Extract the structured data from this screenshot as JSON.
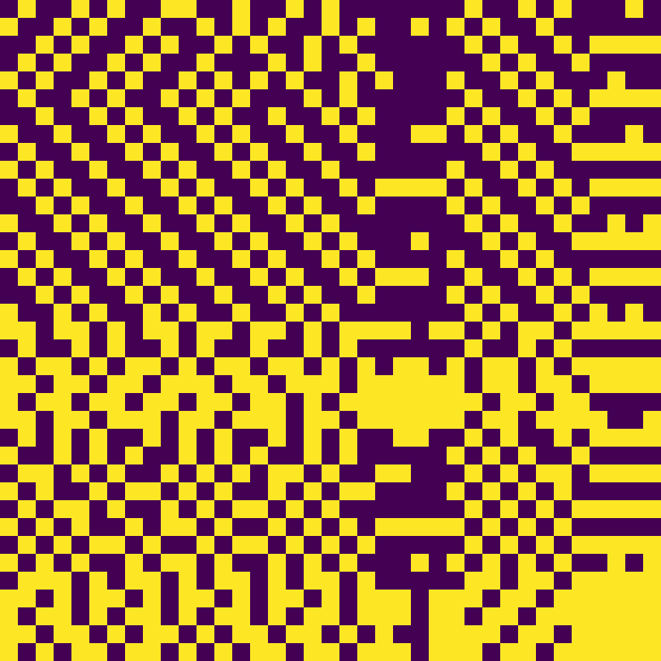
{
  "chart_data": {
    "type": "heatmap",
    "tick_labels": false,
    "colors": [
      "#440154",
      "#fde725"
    ],
    "cells": [
      [
        0,
        1,
        0,
        0,
        1,
        0,
        1,
        0,
        0,
        1,
        1,
        0,
        0,
        1,
        0,
        0,
        1,
        0,
        1,
        0,
        0,
        0,
        0,
        0,
        0,
        0,
        1,
        0,
        0,
        1,
        0,
        1,
        0,
        0,
        0,
        1,
        0
      ],
      [
        1,
        0,
        0,
        1,
        0,
        1,
        0,
        0,
        1,
        0,
        0,
        1,
        0,
        1,
        0,
        1,
        0,
        0,
        1,
        0,
        1,
        0,
        0,
        1,
        0,
        1,
        0,
        1,
        0,
        0,
        1,
        0,
        0,
        0,
        0,
        0,
        0
      ],
      [
        0,
        0,
        1,
        0,
        1,
        0,
        0,
        1,
        0,
        1,
        0,
        0,
        1,
        0,
        1,
        0,
        0,
        1,
        0,
        1,
        0,
        0,
        0,
        0,
        0,
        0,
        1,
        0,
        1,
        0,
        0,
        1,
        0,
        1,
        1,
        1,
        1
      ],
      [
        0,
        1,
        0,
        1,
        0,
        0,
        1,
        0,
        1,
        0,
        0,
        1,
        0,
        0,
        0,
        1,
        0,
        1,
        0,
        0,
        1,
        0,
        0,
        0,
        0,
        0,
        0,
        1,
        0,
        1,
        0,
        0,
        1,
        0,
        0,
        0,
        0
      ],
      [
        1,
        0,
        1,
        0,
        0,
        1,
        0,
        1,
        0,
        0,
        1,
        0,
        1,
        0,
        1,
        0,
        1,
        0,
        0,
        1,
        0,
        1,
        0,
        0,
        0,
        1,
        0,
        0,
        1,
        0,
        1,
        0,
        0,
        0,
        1,
        0,
        0
      ],
      [
        0,
        1,
        0,
        0,
        1,
        0,
        1,
        0,
        0,
        1,
        0,
        1,
        0,
        1,
        0,
        0,
        0,
        1,
        0,
        1,
        0,
        0,
        0,
        0,
        0,
        0,
        1,
        0,
        0,
        1,
        0,
        1,
        0,
        1,
        1,
        1,
        1
      ],
      [
        0,
        0,
        1,
        0,
        0,
        1,
        0,
        1,
        0,
        0,
        1,
        0,
        1,
        0,
        0,
        1,
        0,
        0,
        1,
        0,
        1,
        0,
        0,
        0,
        0,
        1,
        0,
        1,
        0,
        0,
        1,
        0,
        1,
        0,
        0,
        0,
        0
      ],
      [
        1,
        0,
        0,
        1,
        0,
        0,
        1,
        0,
        1,
        0,
        0,
        1,
        0,
        1,
        0,
        0,
        1,
        0,
        0,
        1,
        0,
        0,
        0,
        1,
        1,
        0,
        1,
        0,
        1,
        0,
        0,
        1,
        0,
        0,
        0,
        1,
        0
      ],
      [
        0,
        1,
        0,
        0,
        1,
        0,
        0,
        1,
        0,
        1,
        0,
        0,
        1,
        0,
        1,
        0,
        0,
        1,
        0,
        0,
        1,
        0,
        0,
        0,
        0,
        0,
        0,
        1,
        0,
        1,
        0,
        0,
        1,
        1,
        1,
        1,
        1
      ],
      [
        1,
        0,
        1,
        0,
        0,
        1,
        0,
        0,
        1,
        0,
        1,
        0,
        0,
        1,
        0,
        1,
        0,
        0,
        1,
        0,
        0,
        0,
        0,
        0,
        0,
        1,
        0,
        0,
        1,
        0,
        1,
        0,
        0,
        0,
        0,
        0,
        0
      ],
      [
        0,
        1,
        0,
        1,
        0,
        0,
        1,
        0,
        0,
        1,
        0,
        1,
        0,
        0,
        1,
        0,
        1,
        0,
        0,
        1,
        0,
        1,
        1,
        1,
        1,
        0,
        1,
        0,
        0,
        1,
        0,
        1,
        0,
        1,
        1,
        1,
        1
      ],
      [
        0,
        0,
        1,
        0,
        1,
        0,
        0,
        1,
        0,
        0,
        1,
        0,
        1,
        0,
        0,
        1,
        0,
        1,
        0,
        0,
        1,
        0,
        0,
        0,
        0,
        1,
        0,
        1,
        0,
        0,
        1,
        0,
        1,
        0,
        0,
        0,
        0
      ],
      [
        1,
        0,
        0,
        1,
        0,
        1,
        0,
        0,
        1,
        0,
        0,
        1,
        0,
        1,
        0,
        0,
        1,
        0,
        1,
        0,
        0,
        0,
        0,
        0,
        0,
        0,
        1,
        0,
        1,
        0,
        0,
        1,
        0,
        0,
        1,
        0,
        1
      ],
      [
        0,
        1,
        0,
        0,
        1,
        0,
        1,
        0,
        0,
        1,
        0,
        0,
        1,
        0,
        1,
        0,
        0,
        1,
        0,
        1,
        0,
        0,
        0,
        1,
        0,
        0,
        0,
        1,
        0,
        1,
        0,
        0,
        1,
        1,
        1,
        1,
        1
      ],
      [
        1,
        0,
        1,
        0,
        0,
        1,
        0,
        1,
        0,
        0,
        1,
        0,
        0,
        1,
        0,
        1,
        0,
        0,
        1,
        0,
        1,
        0,
        0,
        0,
        0,
        1,
        0,
        0,
        1,
        0,
        1,
        0,
        0,
        0,
        0,
        0,
        0
      ],
      [
        0,
        1,
        0,
        1,
        0,
        0,
        1,
        0,
        1,
        0,
        0,
        1,
        0,
        0,
        1,
        0,
        1,
        0,
        0,
        1,
        0,
        1,
        1,
        1,
        0,
        0,
        1,
        0,
        0,
        1,
        0,
        1,
        0,
        1,
        1,
        1,
        1
      ],
      [
        0,
        0,
        1,
        0,
        1,
        0,
        0,
        1,
        0,
        1,
        0,
        0,
        1,
        0,
        0,
        1,
        0,
        1,
        0,
        0,
        1,
        0,
        0,
        0,
        0,
        1,
        0,
        1,
        0,
        0,
        1,
        0,
        1,
        0,
        0,
        0,
        0
      ],
      [
        1,
        0,
        0,
        1,
        0,
        1,
        0,
        0,
        1,
        0,
        1,
        0,
        0,
        1,
        0,
        0,
        1,
        0,
        1,
        0,
        0,
        0,
        0,
        0,
        0,
        0,
        1,
        0,
        1,
        0,
        0,
        1,
        0,
        1,
        0,
        1,
        0
      ],
      [
        1,
        1,
        0,
        1,
        1,
        0,
        1,
        0,
        1,
        1,
        0,
        1,
        1,
        0,
        1,
        1,
        0,
        1,
        0,
        1,
        1,
        1,
        1,
        0,
        1,
        1,
        0,
        1,
        0,
        1,
        1,
        0,
        1,
        1,
        1,
        1,
        1
      ],
      [
        0,
        1,
        0,
        0,
        1,
        0,
        1,
        0,
        0,
        1,
        0,
        1,
        0,
        0,
        1,
        0,
        0,
        1,
        0,
        1,
        0,
        0,
        0,
        0,
        0,
        0,
        1,
        0,
        0,
        1,
        0,
        1,
        0,
        0,
        0,
        0,
        0
      ],
      [
        1,
        0,
        1,
        1,
        0,
        1,
        0,
        1,
        1,
        0,
        1,
        0,
        1,
        1,
        0,
        1,
        1,
        0,
        1,
        0,
        1,
        0,
        1,
        1,
        0,
        1,
        0,
        1,
        1,
        0,
        1,
        0,
        1,
        1,
        1,
        1,
        1
      ],
      [
        1,
        1,
        0,
        1,
        1,
        0,
        1,
        1,
        0,
        1,
        1,
        1,
        0,
        1,
        1,
        0,
        1,
        1,
        1,
        0,
        1,
        1,
        1,
        1,
        1,
        1,
        0,
        1,
        1,
        0,
        1,
        1,
        0,
        1,
        1,
        1,
        1
      ],
      [
        1,
        0,
        1,
        1,
        0,
        1,
        1,
        0,
        1,
        1,
        0,
        1,
        1,
        0,
        1,
        1,
        0,
        1,
        0,
        1,
        1,
        1,
        1,
        1,
        1,
        1,
        1,
        0,
        1,
        1,
        0,
        1,
        1,
        0,
        0,
        0,
        0
      ],
      [
        1,
        1,
        0,
        1,
        1,
        0,
        1,
        1,
        1,
        0,
        1,
        1,
        0,
        1,
        1,
        1,
        0,
        1,
        1,
        0,
        1,
        1,
        1,
        1,
        1,
        1,
        0,
        1,
        1,
        0,
        1,
        1,
        1,
        1,
        0,
        0,
        1
      ],
      [
        0,
        1,
        0,
        1,
        0,
        1,
        0,
        0,
        1,
        0,
        1,
        0,
        1,
        0,
        0,
        1,
        0,
        1,
        0,
        1,
        0,
        0,
        1,
        1,
        0,
        0,
        1,
        0,
        1,
        0,
        0,
        1,
        0,
        1,
        1,
        1,
        1
      ],
      [
        1,
        0,
        0,
        1,
        0,
        1,
        0,
        1,
        0,
        0,
        1,
        0,
        1,
        0,
        1,
        0,
        0,
        1,
        0,
        1,
        0,
        0,
        0,
        0,
        0,
        1,
        0,
        1,
        0,
        1,
        0,
        0,
        1,
        0,
        0,
        0,
        0
      ],
      [
        0,
        1,
        1,
        0,
        1,
        0,
        1,
        0,
        0,
        1,
        0,
        1,
        0,
        1,
        0,
        1,
        1,
        0,
        1,
        0,
        0,
        1,
        1,
        0,
        0,
        0,
        1,
        0,
        1,
        0,
        1,
        1,
        0,
        1,
        1,
        1,
        1
      ],
      [
        1,
        0,
        1,
        0,
        0,
        1,
        0,
        1,
        1,
        0,
        1,
        0,
        1,
        0,
        0,
        1,
        0,
        1,
        0,
        1,
        1,
        0,
        0,
        0,
        0,
        1,
        0,
        1,
        0,
        1,
        0,
        1,
        0,
        0,
        0,
        0,
        0
      ],
      [
        0,
        1,
        0,
        1,
        1,
        0,
        1,
        0,
        0,
        1,
        0,
        1,
        0,
        1,
        1,
        0,
        1,
        0,
        1,
        0,
        0,
        0,
        0,
        0,
        0,
        0,
        1,
        0,
        1,
        0,
        1,
        0,
        1,
        1,
        1,
        1,
        1
      ],
      [
        1,
        0,
        1,
        0,
        1,
        0,
        0,
        1,
        0,
        1,
        1,
        0,
        1,
        0,
        0,
        1,
        0,
        1,
        0,
        1,
        0,
        1,
        1,
        1,
        1,
        1,
        0,
        1,
        0,
        1,
        0,
        1,
        0,
        0,
        0,
        0,
        0
      ],
      [
        0,
        1,
        0,
        1,
        0,
        1,
        1,
        0,
        1,
        0,
        0,
        1,
        0,
        1,
        1,
        0,
        1,
        0,
        1,
        0,
        1,
        0,
        0,
        0,
        0,
        0,
        1,
        0,
        1,
        0,
        1,
        0,
        1,
        1,
        1,
        1,
        1
      ],
      [
        1,
        0,
        1,
        0,
        1,
        0,
        0,
        1,
        0,
        1,
        1,
        0,
        1,
        0,
        0,
        1,
        0,
        1,
        0,
        1,
        0,
        0,
        0,
        1,
        0,
        1,
        0,
        1,
        0,
        1,
        0,
        1,
        0,
        0,
        1,
        0,
        1
      ],
      [
        0,
        1,
        1,
        1,
        0,
        1,
        0,
        1,
        1,
        0,
        1,
        0,
        1,
        1,
        0,
        1,
        0,
        1,
        1,
        0,
        1,
        0,
        0,
        0,
        0,
        0,
        1,
        1,
        0,
        1,
        1,
        0,
        1,
        1,
        1,
        1,
        1
      ],
      [
        1,
        1,
        0,
        1,
        0,
        1,
        1,
        0,
        1,
        0,
        1,
        1,
        0,
        1,
        0,
        1,
        1,
        0,
        1,
        0,
        1,
        1,
        1,
        0,
        1,
        1,
        1,
        0,
        1,
        1,
        0,
        1,
        1,
        1,
        1,
        1,
        1
      ],
      [
        1,
        0,
        1,
        1,
        0,
        1,
        0,
        1,
        1,
        0,
        1,
        0,
        1,
        1,
        0,
        1,
        0,
        1,
        1,
        0,
        1,
        1,
        1,
        0,
        1,
        1,
        0,
        1,
        1,
        0,
        1,
        1,
        1,
        1,
        1,
        1,
        1
      ],
      [
        1,
        1,
        0,
        1,
        1,
        0,
        1,
        0,
        1,
        1,
        0,
        1,
        0,
        1,
        1,
        0,
        1,
        1,
        0,
        1,
        0,
        1,
        0,
        0,
        1,
        1,
        1,
        1,
        0,
        1,
        1,
        0,
        1,
        1,
        1,
        1,
        1
      ],
      [
        1,
        0,
        1,
        0,
        1,
        1,
        0,
        1,
        1,
        0,
        1,
        0,
        1,
        0,
        1,
        1,
        0,
        1,
        1,
        0,
        1,
        1,
        1,
        0,
        1,
        1,
        1,
        0,
        1,
        1,
        0,
        1,
        1,
        1,
        1,
        1,
        1
      ]
    ]
  }
}
